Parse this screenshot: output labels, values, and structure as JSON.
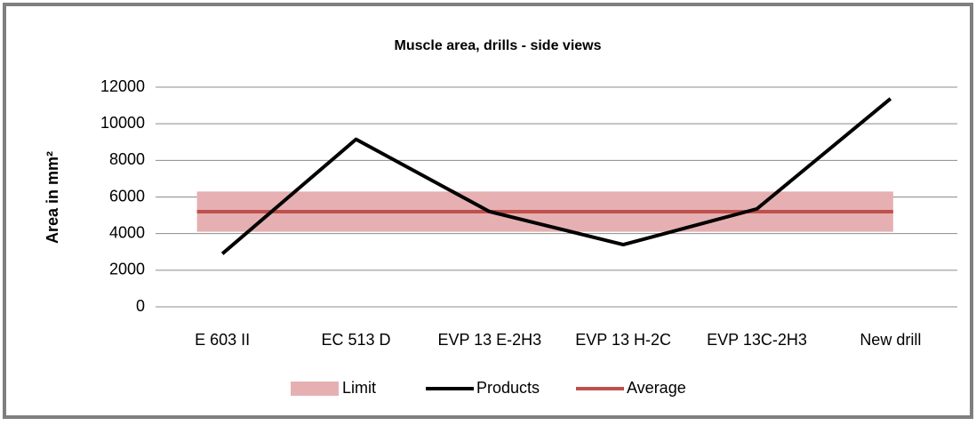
{
  "chart_data": {
    "type": "line",
    "title": "Muscle area, drills - side views",
    "y_label": "Area in mm²",
    "categories": [
      "E 603 II",
      "EC 513 D",
      "EVP 13 E-2H3",
      "EVP 13 H-2C",
      "EVP 13C-2H3",
      "New drill"
    ],
    "ylim": [
      0,
      12000
    ],
    "yticks": [
      0,
      2000,
      4000,
      6000,
      8000,
      10000,
      12000
    ],
    "grid": true,
    "legend": "bottom",
    "band": {
      "name": "Limit",
      "color": "#e6b0b2",
      "low": [
        4100,
        4100,
        4100,
        4100,
        4100,
        4100
      ],
      "high": [
        6300,
        6300,
        6300,
        6300,
        6300,
        6300
      ]
    },
    "series": [
      {
        "name": "Products",
        "color": "#000000",
        "values": [
          2900,
          9150,
          5200,
          3400,
          5350,
          11370
        ]
      },
      {
        "name": "Average",
        "color": "#c0504d",
        "values": [
          5200,
          5200,
          5200,
          5200,
          5200,
          5200
        ]
      }
    ]
  }
}
